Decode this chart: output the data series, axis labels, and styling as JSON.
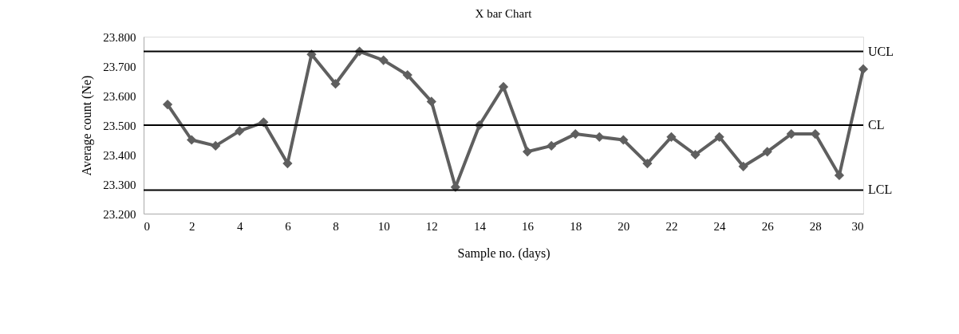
{
  "chart_data": {
    "type": "line",
    "title": "X bar Chart",
    "xlabel": "Sample no. (days)",
    "ylabel": "Average count (Ne)",
    "x": [
      1,
      2,
      3,
      4,
      5,
      6,
      7,
      8,
      9,
      10,
      11,
      12,
      13,
      14,
      15,
      16,
      17,
      18,
      19,
      20,
      21,
      22,
      23,
      24,
      25,
      26,
      27,
      28,
      29,
      30
    ],
    "series": [
      {
        "color": "#5f5f5f",
        "values": [
          23.57,
          23.45,
          23.43,
          23.48,
          23.51,
          23.37,
          23.74,
          23.64,
          23.75,
          23.72,
          23.67,
          23.58,
          23.29,
          23.5,
          23.63,
          23.41,
          23.43,
          23.47,
          23.46,
          23.45,
          23.37,
          23.46,
          23.4,
          23.46,
          23.36,
          23.41,
          23.47,
          23.47,
          23.33,
          23.69
        ]
      }
    ],
    "xlim": [
      0,
      30
    ],
    "xticks": [
      0,
      2,
      4,
      6,
      8,
      10,
      12,
      14,
      16,
      18,
      20,
      22,
      24,
      26,
      28,
      30
    ],
    "ylim": [
      23.2,
      23.8
    ],
    "yticks": [
      {
        "value": 23.2,
        "label": "23.200"
      },
      {
        "value": 23.3,
        "label": "23.300"
      },
      {
        "value": 23.4,
        "label": "23.400"
      },
      {
        "value": 23.5,
        "label": "23.500"
      },
      {
        "value": 23.6,
        "label": "23.600"
      },
      {
        "value": 23.7,
        "label": "23.700"
      },
      {
        "value": 23.8,
        "label": "23.800"
      }
    ],
    "ref_lines": [
      {
        "axis": "y",
        "value": 23.75,
        "label": "UCL",
        "color": "#000000"
      },
      {
        "axis": "y",
        "value": 23.5,
        "label": "CL",
        "color": "#000000"
      },
      {
        "axis": "y",
        "value": 23.28,
        "label": "LCL",
        "color": "#000000"
      }
    ],
    "grid": false,
    "marker": "diamond",
    "line_style": "solid"
  }
}
